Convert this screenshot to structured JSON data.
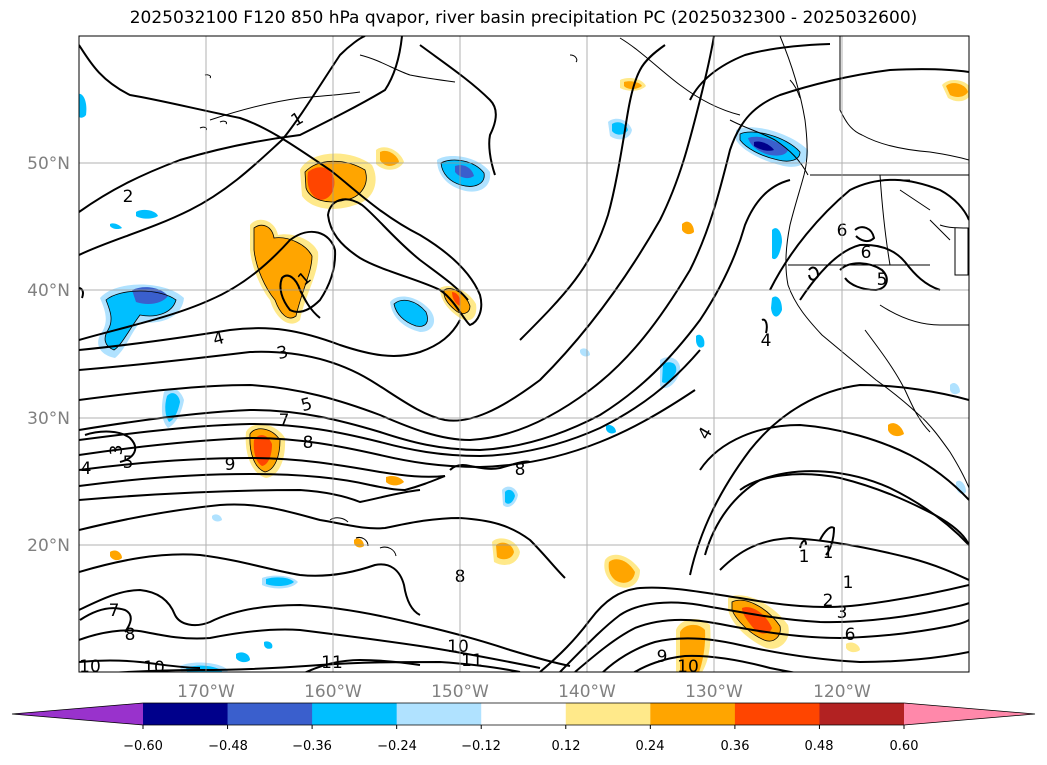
{
  "title": "2025032100 F120 850 hPa qvapor, river basin precipitation PC (2025032300 - 2025032600)",
  "map": {
    "lon_range": [
      -180,
      -110
    ],
    "lat_range": [
      10,
      60
    ],
    "lat_ticks": [
      "50°N",
      "40°N",
      "30°N",
      "20°N"
    ],
    "lon_ticks": [
      "170°W",
      "160°W",
      "150°W",
      "140°W",
      "130°W",
      "120°W"
    ],
    "gridlines": true,
    "contour_field": "850 hPa qvapor",
    "contour_levels": [
      "1",
      "2",
      "3",
      "4",
      "5",
      "6",
      "7",
      "8",
      "9",
      "10",
      "11"
    ],
    "contour_labels": [
      "1",
      "2",
      "1",
      "4",
      "3",
      "5",
      "7",
      "8",
      "9",
      "8",
      "3",
      "4",
      "5",
      "8",
      "4",
      "1",
      "1",
      "1",
      "2",
      "3",
      "6",
      "9",
      "10",
      "10",
      "11",
      "8",
      "7",
      "11",
      "10",
      "10",
      "6",
      "5",
      "6"
    ]
  },
  "colorbar": {
    "ticks": [
      "−0.60",
      "−0.48",
      "−0.36",
      "−0.24",
      "−0.12",
      "0.12",
      "0.24",
      "0.36",
      "0.48",
      "0.60"
    ],
    "colors": [
      "#9932cc",
      "#00008b",
      "#3a5fcd",
      "#00bfff",
      "#b0e2ff",
      "#ffffff",
      "#ffe98a",
      "#ffa500",
      "#ff4500",
      "#b22222",
      "#ff88aa"
    ],
    "extend": "both"
  },
  "shading_colors": {
    "neg_1": "#b0e2ff",
    "neg_2": "#00bfff",
    "neg_3": "#3a5fcd",
    "neg_4": "#00008b",
    "pos_1": "#ffe98a",
    "pos_2": "#ffa500",
    "pos_3": "#ff4500"
  }
}
